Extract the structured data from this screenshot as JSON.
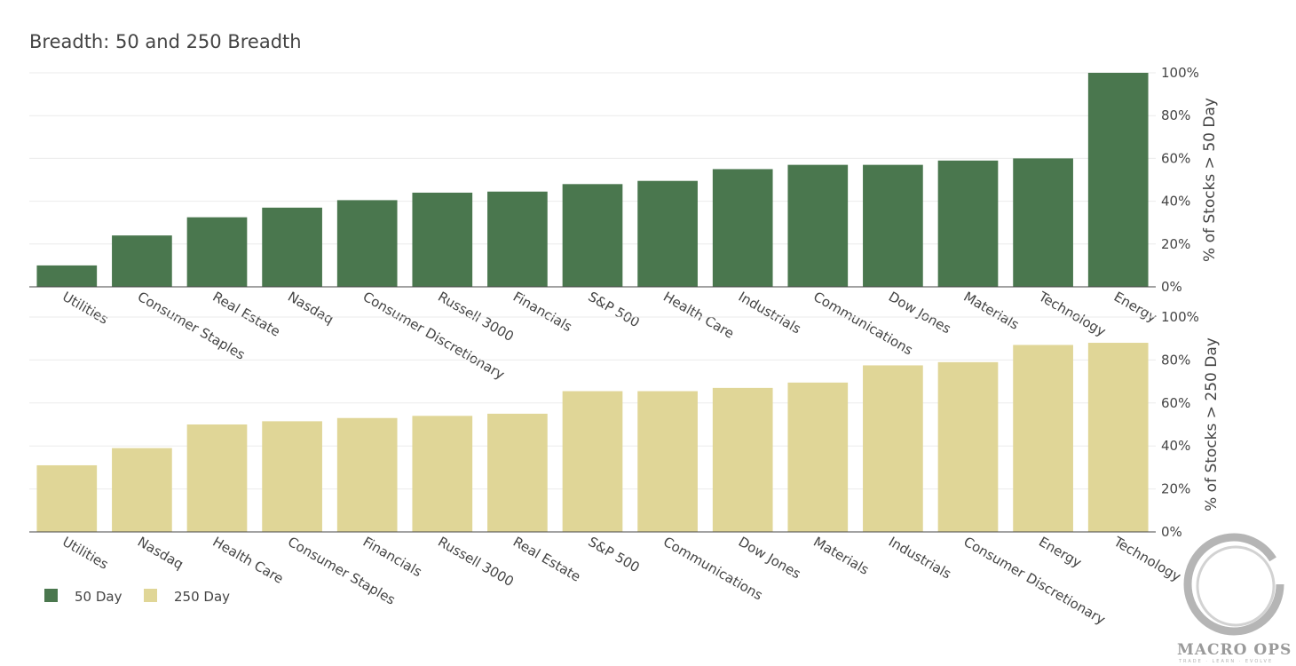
{
  "chart_data": [
    {
      "type": "bar",
      "title": "Breadth: 50 and 250 Breadth",
      "ylabel": "% of Stocks > 50 Day",
      "ylim": [
        0,
        100
      ],
      "yticks": [
        "0%",
        "20%",
        "40%",
        "60%",
        "80%",
        "100%"
      ],
      "categories": [
        "Utilities",
        "Consumer Staples",
        "Real Estate",
        "Nasdaq",
        "Consumer Discretionary",
        "Russell 3000",
        "Financials",
        "S&P 500",
        "Health Care",
        "Industrials",
        "Communications",
        "Dow Jones",
        "Materials",
        "Technology",
        "Energy"
      ],
      "series": [
        {
          "name": "50 Day",
          "color": "#4a774e",
          "values": [
            10,
            24,
            32.5,
            37,
            40.5,
            44,
            44.5,
            48,
            49.5,
            55,
            57,
            57,
            59,
            60,
            100
          ]
        }
      ],
      "grid": true,
      "legend": "bottom-left"
    },
    {
      "type": "bar",
      "ylabel": "% of Stocks > 250 Day",
      "ylim": [
        0,
        100
      ],
      "yticks": [
        "0%",
        "20%",
        "40%",
        "60%",
        "80%",
        "100%"
      ],
      "categories": [
        "Utilities",
        "Nasdaq",
        "Health Care",
        "Consumer Staples",
        "Financials",
        "Russell 3000",
        "Real Estate",
        "S&P 500",
        "Communications",
        "Dow Jones",
        "Materials",
        "Industrials",
        "Consumer Discretionary",
        "Energy",
        "Technology"
      ],
      "series": [
        {
          "name": "250 Day",
          "color": "#e0d697",
          "values": [
            31,
            39,
            50,
            51.5,
            53,
            54,
            55,
            65.5,
            65.5,
            67,
            69.5,
            77.5,
            79,
            87,
            88
          ]
        }
      ],
      "grid": true
    }
  ],
  "legend": {
    "items": [
      {
        "label": "50 Day",
        "color": "#4a774e"
      },
      {
        "label": "250 Day",
        "color": "#e0d697"
      }
    ]
  },
  "logo": {
    "name": "MACRO OPS",
    "tagline": "TRADE · LEARN · EVOLVE"
  }
}
